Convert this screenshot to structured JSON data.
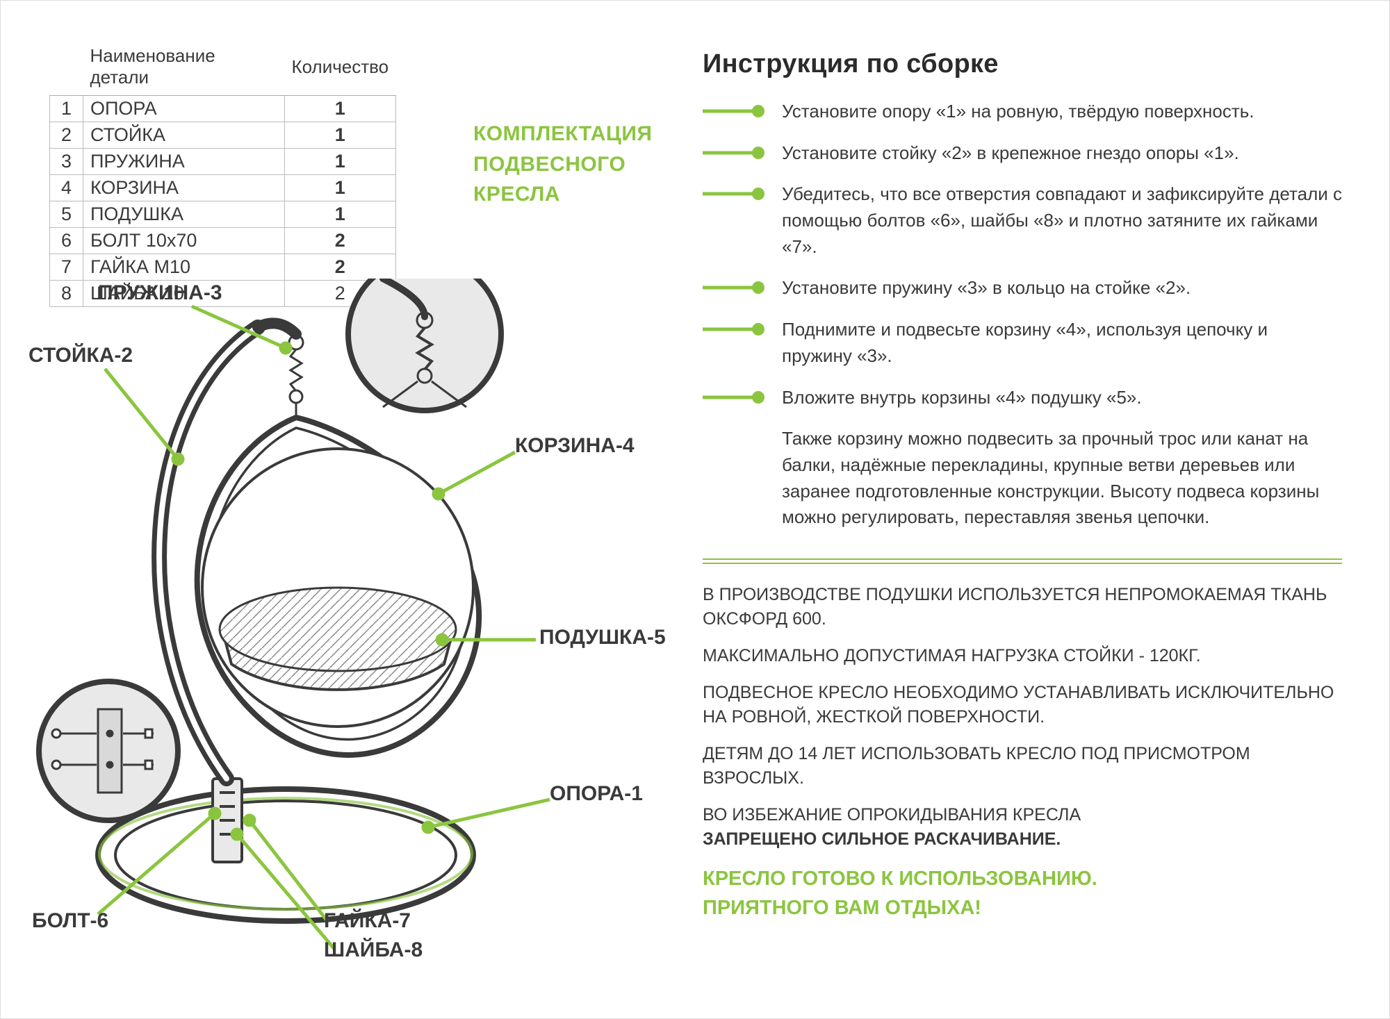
{
  "colors": {
    "accent": "#8bc53f",
    "text": "#3a3a3a",
    "border": "#bbbbbb",
    "diagram_fill": "#e9e9e9",
    "diagram_stroke": "#3a3a3a"
  },
  "parts_table": {
    "headers": [
      "",
      "Наименование детали",
      "Количество"
    ],
    "rows": [
      {
        "n": "1",
        "name": "ОПОРА",
        "qty": "1"
      },
      {
        "n": "2",
        "name": "СТОЙКА",
        "qty": "1"
      },
      {
        "n": "3",
        "name": "ПРУЖИНА",
        "qty": "1"
      },
      {
        "n": "4",
        "name": "КОРЗИНА",
        "qty": "1"
      },
      {
        "n": "5",
        "name": "ПОДУШКА",
        "qty": "1"
      },
      {
        "n": "6",
        "name": "БОЛТ 10x70",
        "qty": "2"
      },
      {
        "n": "7",
        "name": "ГАЙКА М10",
        "qty": "2"
      },
      {
        "n": "8",
        "name": "ШАЙБА 10",
        "qty": "2"
      }
    ]
  },
  "subtitle": {
    "l1": "КОМПЛЕКТАЦИЯ",
    "l2": "ПОДВЕСНОГО",
    "l3": "КРЕСЛА"
  },
  "diagram_labels": {
    "spring": "ПРУЖИНА-3",
    "stand": "СТОЙКА-2",
    "basket": "КОРЗИНА-4",
    "cushion": "ПОДУШКА-5",
    "base": "ОПОРА-1",
    "bolt": "БОЛТ-6",
    "nut": "ГАЙКА-7",
    "washer": "ШАЙБА-8"
  },
  "instructions": {
    "title": "Инструкция по сборке",
    "steps": [
      "Установите опору «1» на ровную, твёрдую поверхность.",
      "Установите стойку «2» в крепежное гнездо опоры «1».",
      "Убедитесь, что все отверстия совпадают и зафиксируйте детали с помощью болтов «6», шайбы «8» и плотно затяните их гайками «7».",
      "Установите пружину «3» в кольцо на стойке «2».",
      "Поднимите и подвесьте корзину «4», используя цепочку и пружину «3».",
      "Вложите внутрь корзины «4» подушку «5»."
    ],
    "extra": "Также корзину можно подвесить за прочный трос или канат на балки, надёжные перекладины, крупные ветви деревьев или заранее подготовленные конструкции. Высоту подвеса корзины можно регулировать, переставляя звенья цепочки."
  },
  "notes": {
    "n1": "В ПРОИЗВОДСТВЕ ПОДУШКИ ИСПОЛЬЗУЕТСЯ НЕПРОМОКАЕМАЯ ТКАНЬ ОКСФОРД 600.",
    "n2": "МАКСИМАЛЬНО ДОПУСТИМАЯ НАГРУЗКА СТОЙКИ - 120КГ.",
    "n3": "ПОДВЕСНОЕ КРЕСЛО НЕОБХОДИМО УСТАНАВЛИВАТЬ ИСКЛЮЧИТЕЛЬНО НА РОВНОЙ, ЖЕСТКОЙ ПОВЕРХНОСТИ.",
    "n4": "ДЕТЯМ ДО 14 ЛЕТ ИСПОЛЬЗОВАТЬ КРЕСЛО ПОД ПРИСМОТРОМ ВЗРОСЛЫХ.",
    "n5a": "ВО ИЗБЕЖАНИЕ ОПРОКИДЫВАНИЯ КРЕСЛА",
    "n5b": "ЗАПРЕЩЕНО СИЛЬНОЕ РАСКАЧИВАНИЕ."
  },
  "ready": {
    "l1": "КРЕСЛО ГОТОВО К ИСПОЛЬЗОВАНИЮ.",
    "l2": "ПРИЯТНОГО ВАМ ОТДЫХА!"
  }
}
